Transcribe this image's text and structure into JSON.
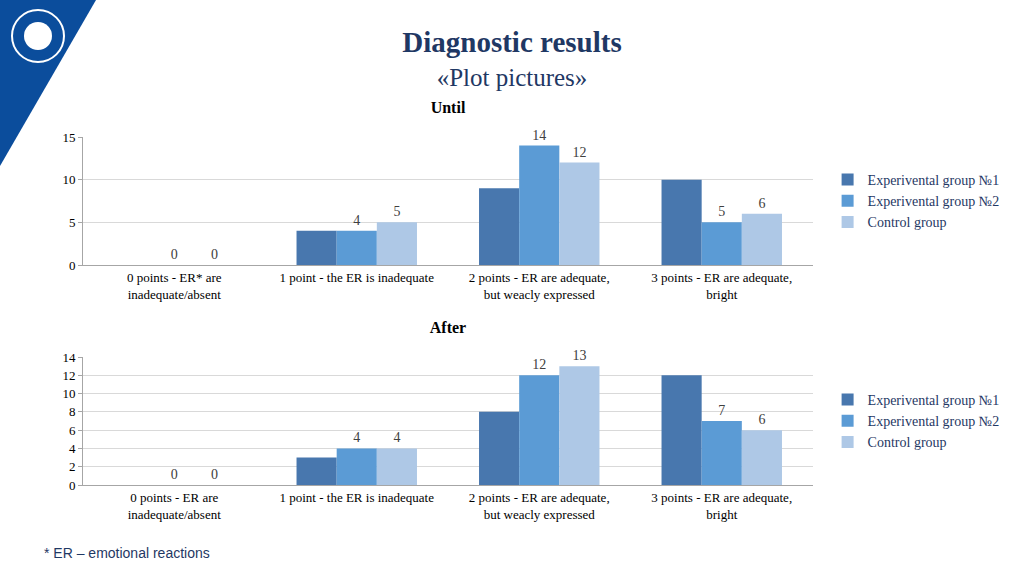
{
  "header": {
    "title": "Diagnostic results",
    "subtitle": "«Plot pictures»"
  },
  "footnote": "* ER – emotional reactions",
  "chart_data": [
    {
      "type": "bar",
      "title": "Until",
      "categories": [
        "0 points - ER* are inadequate/absent",
        "1 point - the ER is inadequate",
        "2 points - ER are adequate, but weacly expressed",
        "3 points - ER are adequate, bright"
      ],
      "series": [
        {
          "name": "Experivental group №1",
          "color": "#4877ae",
          "values": [
            0,
            4,
            9,
            10
          ],
          "data_labels": false
        },
        {
          "name": "Experivental group №2",
          "color": "#5b9bd5",
          "values": [
            0,
            4,
            14,
            5
          ],
          "data_labels": true
        },
        {
          "name": "Control group",
          "color": "#aec8e6",
          "values": [
            0,
            5,
            12,
            6
          ],
          "data_labels": true
        }
      ],
      "ylim": [
        0,
        15
      ],
      "yticks": [
        0,
        5,
        10,
        15
      ],
      "grid": true,
      "legend": "right"
    },
    {
      "type": "bar",
      "title": "After",
      "categories": [
        "0 points - ER are inadequate/absent",
        "1 point - the ER is inadequate",
        "2 points - ER are adequate, but weacly expressed",
        "3 points - ER are adequate, bright"
      ],
      "series": [
        {
          "name": "Experivental group №1",
          "color": "#4877ae",
          "values": [
            0,
            3,
            8,
            12
          ],
          "data_labels": false
        },
        {
          "name": "Experivental group №2",
          "color": "#5b9bd5",
          "values": [
            0,
            4,
            12,
            7
          ],
          "data_labels": true
        },
        {
          "name": "Control group",
          "color": "#aec8e6",
          "values": [
            0,
            4,
            13,
            6
          ],
          "data_labels": true
        }
      ],
      "ylim": [
        0,
        14
      ],
      "yticks": [
        0,
        2,
        4,
        6,
        8,
        10,
        12,
        14
      ],
      "grid": true,
      "legend": "right"
    }
  ]
}
